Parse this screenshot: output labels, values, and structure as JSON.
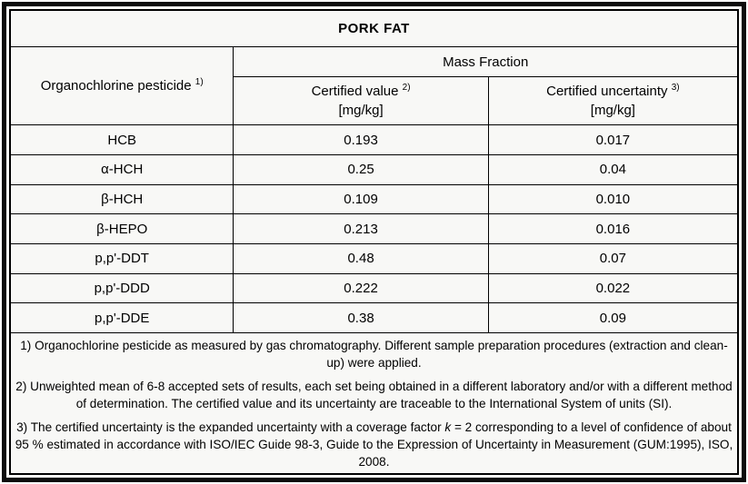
{
  "title": "PORK FAT",
  "table": {
    "col1_header": {
      "label": "Organochlorine pesticide",
      "sup": "1)"
    },
    "group_header": "Mass Fraction",
    "col2_header": {
      "label": "Certified value",
      "sup": "2)",
      "unit": "[mg/kg]"
    },
    "col3_header": {
      "label": "Certified uncertainty",
      "sup": "3)",
      "unit": "[mg/kg]"
    },
    "rows": [
      {
        "name": "HCB",
        "value": "0.193",
        "uncertainty": "0.017"
      },
      {
        "name": "α-HCH",
        "value": "0.25",
        "uncertainty": "0.04"
      },
      {
        "name": "β-HCH",
        "value": "0.109",
        "uncertainty": "0.010"
      },
      {
        "name": "β-HEPO",
        "value": "0.213",
        "uncertainty": "0.016"
      },
      {
        "name": "p,p'-DDT",
        "value": "0.48",
        "uncertainty": "0.07"
      },
      {
        "name": "p,p'-DDD",
        "value": "0.222",
        "uncertainty": "0.022"
      },
      {
        "name": "p,p'-DDE",
        "value": "0.38",
        "uncertainty": "0.09"
      }
    ]
  },
  "footnotes": {
    "note1": "1) Organochlorine pesticide as measured by gas chromatography. Different sample preparation procedures (extraction and clean-up) were applied.",
    "note2": "2) Unweighted mean of 6-8 accepted sets of results, each set being obtained in a different laboratory and/or with a different method of determination. The certified value and its uncertainty are traceable to the International System of units (SI).",
    "note3_before": "3) The certified uncertainty is the expanded uncertainty with a coverage factor ",
    "note3_k": "k",
    "note3_after": " = 2 corresponding to a level of confidence of about 95 % estimated in accordance with ISO/IEC Guide 98-3, Guide to the Expression of Uncertainty in Measurement (GUM:1995), ISO, 2008."
  },
  "colors": {
    "border": "#000000",
    "background": "#f8f8f6",
    "text": "#000000"
  }
}
